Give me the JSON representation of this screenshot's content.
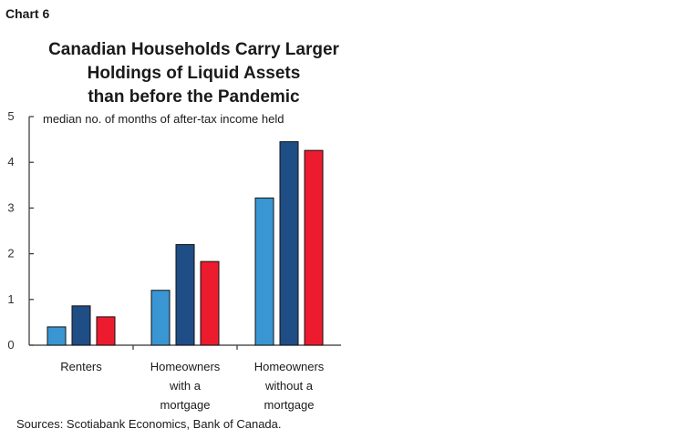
{
  "chart_label": "Chart 6",
  "source": "Sources: Scotiabank Economics, Bank of Canada.",
  "chart_data": {
    "type": "bar",
    "title_lines": [
      "Canadian Households Carry Larger",
      "Holdings of Liquid Assets",
      "than before the Pandemic"
    ],
    "ylabel": "median no. of months of after-tax income held",
    "ylim": [
      0,
      5
    ],
    "yticks": [
      "0",
      "1",
      "2",
      "3",
      "4",
      "5"
    ],
    "categories": [
      [
        "Renters"
      ],
      [
        "Homeowners",
        "with a",
        "mortgage"
      ],
      [
        "Homeowners",
        "without a",
        "mortgage"
      ]
    ],
    "series": [
      {
        "color": "#3a96d2",
        "values": [
          0.4,
          1.2,
          3.22
        ]
      },
      {
        "color": "#1f4d86",
        "values": [
          0.86,
          2.2,
          4.45
        ]
      },
      {
        "color": "#ec1c2e",
        "values": [
          0.62,
          1.83,
          4.26
        ]
      }
    ],
    "grid": false,
    "legend": "none"
  }
}
